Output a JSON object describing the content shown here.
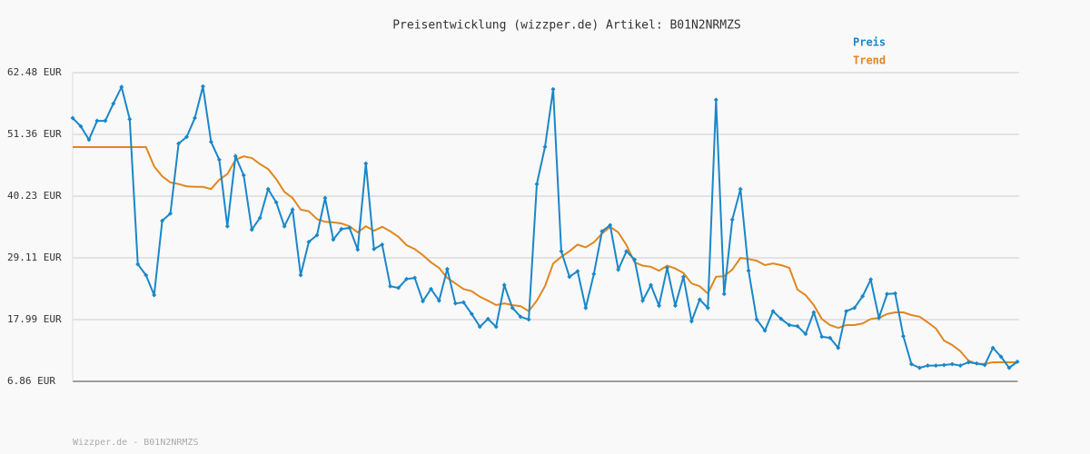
{
  "chart_data": {
    "type": "line",
    "title": "Preisentwicklung (wizzper.de) Artikel: B01N2NRMZS",
    "footer": "Wizzper.de - B01N2NRMZS",
    "categories": [
      null,
      null,
      null,
      null,
      null,
      null,
      null,
      null,
      null,
      null,
      null,
      null,
      null,
      null,
      null,
      null,
      null,
      null,
      null,
      null,
      null,
      null,
      null,
      null,
      null,
      null,
      null,
      null,
      null,
      null,
      null,
      null,
      null,
      null,
      null,
      null,
      null,
      null,
      null,
      null,
      null,
      null,
      null,
      null,
      null,
      null,
      null,
      null,
      null,
      null,
      null,
      null,
      null,
      null,
      null,
      null,
      null,
      null,
      null,
      null,
      null,
      null,
      null,
      null,
      null,
      null,
      null,
      null,
      null,
      null,
      null,
      null,
      null,
      null,
      null,
      null,
      null,
      null,
      null,
      null,
      null,
      null,
      null,
      null,
      null,
      null,
      null,
      null,
      null,
      null,
      null,
      null,
      null,
      null,
      null,
      null,
      null,
      null,
      null,
      null,
      null,
      null,
      null,
      null,
      null,
      null,
      null,
      null,
      null,
      null,
      null,
      null,
      null,
      null,
      null,
      null,
      null
    ],
    "series": [
      {
        "name": "Preis",
        "color": "#1a87c9",
        "markers": true,
        "values": [
          54.3,
          52.8,
          50.4,
          53.8,
          53.8,
          56.9,
          59.9,
          54.1,
          27.96,
          26.0,
          22.4,
          35.8,
          37.1,
          49.7,
          50.9,
          54.3,
          60.0,
          50.0,
          46.8,
          34.8,
          47.4,
          44.0,
          34.2,
          36.3,
          41.5,
          39.1,
          34.8,
          37.8,
          26.0,
          32.0,
          33.2,
          39.9,
          32.4,
          34.3,
          34.5,
          30.6,
          46.1,
          30.7,
          31.5,
          24.0,
          23.7,
          25.3,
          25.5,
          21.3,
          23.5,
          21.4,
          27.1,
          20.9,
          21.1,
          19.0,
          16.7,
          18.1,
          16.7,
          24.2,
          20.1,
          18.5,
          18.0,
          42.4,
          49.1,
          59.5,
          30.3,
          25.7,
          26.7,
          20.1,
          26.2,
          33.9,
          35.0,
          27.0,
          30.3,
          28.8,
          21.4,
          24.2,
          20.5,
          27.3,
          20.5,
          25.7,
          17.7,
          21.6,
          20.1,
          57.6,
          22.6,
          36.0,
          41.5,
          26.8,
          18.0,
          16.0,
          19.5,
          18.1,
          17.0,
          16.8,
          15.4,
          19.3,
          14.9,
          14.7,
          12.9,
          19.5,
          20.1,
          22.2,
          25.2,
          18.3,
          22.6,
          22.7,
          15.0,
          9.97,
          9.3,
          9.7,
          9.7,
          9.8,
          9.97,
          9.7,
          10.3,
          10.1,
          9.8,
          12.9,
          11.3,
          9.3,
          10.4
        ]
      },
      {
        "name": "Trend",
        "color": "#e0871f",
        "markers": false,
        "values": [
          49.07,
          49.07,
          49.07,
          49.07,
          49.07,
          49.07,
          49.07,
          49.07,
          49.07,
          49.07,
          45.6,
          43.8,
          42.7,
          42.4,
          42.0,
          41.9,
          41.9,
          41.5,
          43.2,
          44.2,
          46.8,
          47.4,
          47.1,
          46.0,
          45.1,
          43.3,
          41.0,
          39.9,
          37.8,
          37.5,
          36.1,
          35.6,
          35.5,
          35.3,
          34.8,
          33.7,
          34.8,
          34.0,
          34.7,
          33.9,
          32.9,
          31.4,
          30.7,
          29.6,
          28.3,
          27.3,
          25.5,
          24.5,
          23.5,
          23.1,
          22.1,
          21.4,
          20.6,
          20.9,
          20.6,
          20.4,
          19.5,
          21.4,
          24.0,
          28.1,
          29.3,
          30.3,
          31.5,
          31.0,
          31.9,
          33.5,
          34.7,
          33.7,
          31.4,
          28.3,
          27.7,
          27.5,
          26.8,
          27.7,
          27.2,
          26.4,
          24.5,
          24.0,
          22.7,
          25.7,
          25.8,
          27.0,
          29.1,
          28.9,
          28.6,
          27.8,
          28.1,
          27.8,
          27.3,
          23.4,
          22.4,
          20.6,
          18.1,
          17.0,
          16.5,
          17.0,
          17.0,
          17.3,
          18.1,
          18.3,
          19.0,
          19.3,
          19.3,
          18.8,
          18.5,
          17.5,
          16.4,
          14.2,
          13.4,
          12.3,
          10.6,
          10.0,
          10.0,
          10.3,
          10.3,
          10.3,
          10.3
        ]
      }
    ],
    "ylim": [
      6.86,
      62.48
    ],
    "yticks": [
      {
        "value": 6.86,
        "label": "6.86 EUR"
      },
      {
        "value": 17.99,
        "label": "17.99 EUR"
      },
      {
        "value": 29.11,
        "label": "29.11 EUR"
      },
      {
        "value": 40.23,
        "label": "40.23 EUR"
      },
      {
        "value": 51.36,
        "label": "51.36 EUR"
      },
      {
        "value": 62.48,
        "label": "62.48 EUR"
      }
    ],
    "grid": true,
    "legend": "top-right"
  }
}
